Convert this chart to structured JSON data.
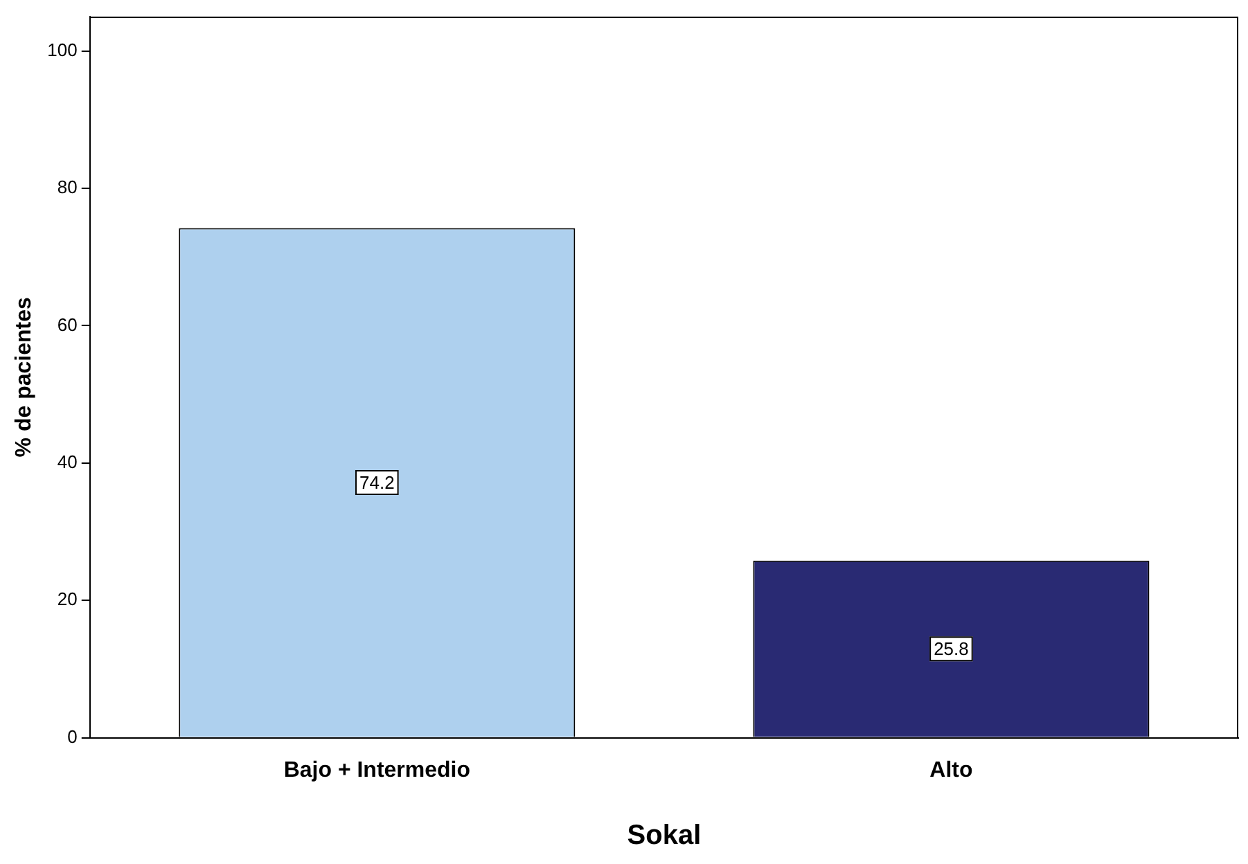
{
  "chart_data": {
    "type": "bar",
    "xlabel": "Sokal",
    "ylabel": "% de pacientes",
    "categories": [
      "Bajo + Intermedio",
      "Alto"
    ],
    "values": [
      74.2,
      25.8
    ],
    "colors": [
      "#aed0ee",
      "#292a73"
    ],
    "ylim": [
      0,
      105
    ],
    "yticks": [
      0,
      20,
      40,
      60,
      80,
      100
    ],
    "grid": false,
    "legend": false,
    "data_labels": true
  }
}
